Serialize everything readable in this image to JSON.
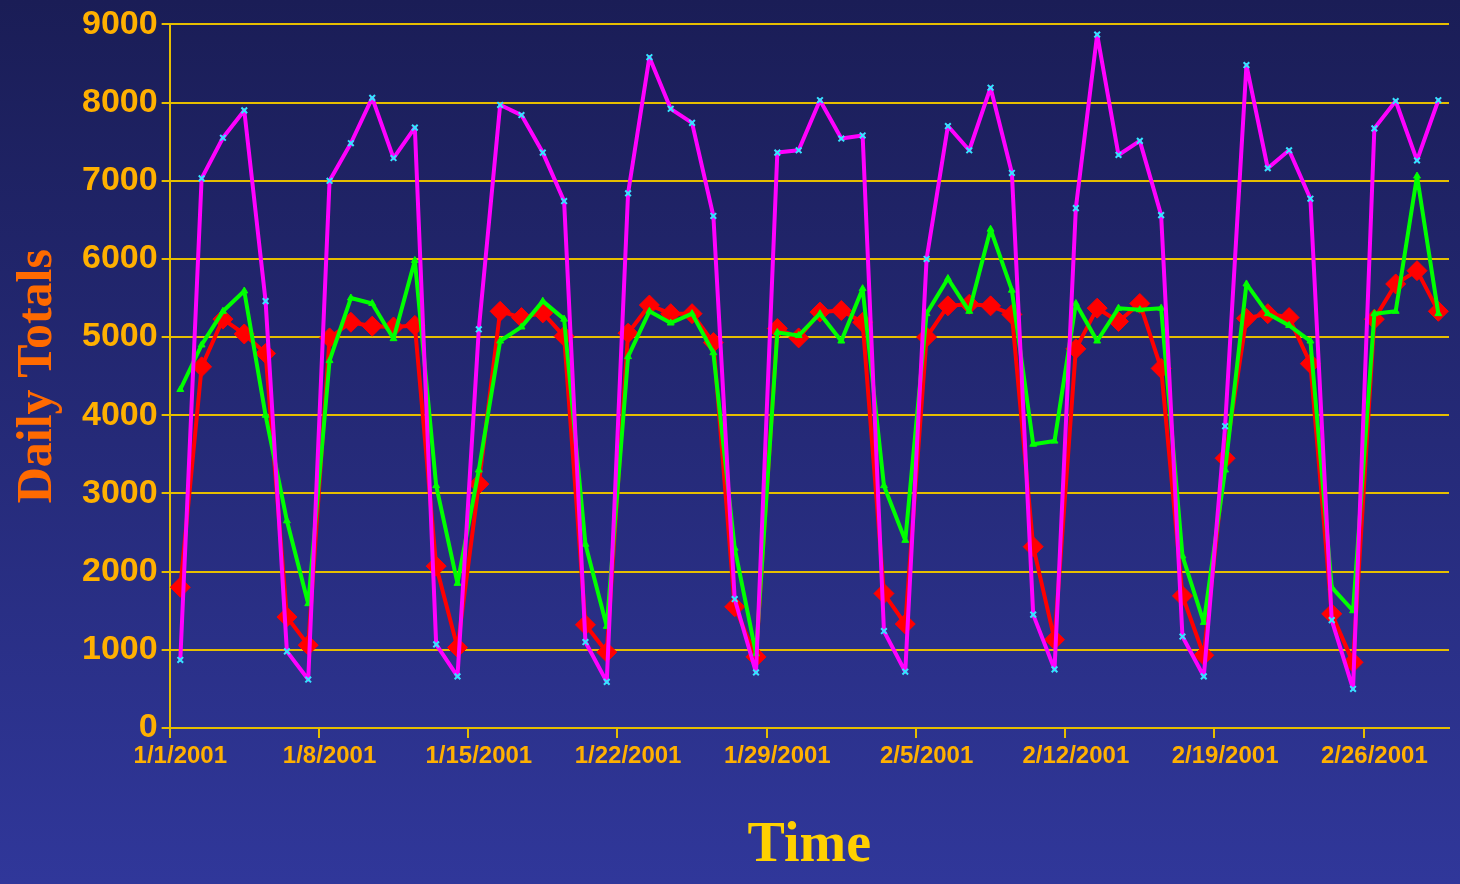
{
  "chart_data": {
    "type": "line",
    "xlabel": "Time",
    "ylabel": "Daily Totals",
    "categories": [
      "1/1/2001",
      null,
      null,
      null,
      null,
      null,
      null,
      "1/8/2001",
      null,
      null,
      null,
      null,
      null,
      null,
      "1/15/2001",
      null,
      null,
      null,
      null,
      null,
      null,
      "1/22/2001",
      null,
      null,
      null,
      null,
      null,
      null,
      "1/29/2001",
      null,
      null,
      null,
      null,
      null,
      null,
      "2/5/2001",
      null,
      null,
      null,
      null,
      null,
      null,
      "2/12/2001",
      null,
      null,
      null,
      null,
      null,
      null,
      "2/19/2001",
      null,
      null,
      null,
      null,
      null,
      null,
      "2/26/2001",
      null,
      null,
      null
    ],
    "series": [
      {
        "color": "#ff00ff",
        "marker": "cross",
        "values": [
          870,
          7030,
          7550,
          7900,
          5460,
          980,
          620,
          7000,
          7480,
          8060,
          7290,
          7680,
          1070,
          660,
          5100,
          7970,
          7840,
          7360,
          6740,
          1100,
          590,
          6840,
          8580,
          7920,
          7740,
          6550,
          1650,
          710,
          7360,
          7390,
          8030,
          7540,
          7580,
          1240,
          720,
          6000,
          7700,
          7390,
          8190,
          7100,
          1450,
          750,
          6650,
          8870,
          7330,
          7510,
          6560,
          1170,
          660,
          3860,
          8480,
          7160,
          7390,
          6770,
          1380,
          500,
          7670,
          8020,
          7260,
          8030
        ]
      },
      {
        "color": "#00ff00",
        "marker": "triangle",
        "values": [
          4330,
          4900,
          5330,
          5590,
          4000,
          2650,
          1590,
          4700,
          5500,
          5430,
          4980,
          5980,
          3100,
          1850,
          3300,
          4950,
          5130,
          5460,
          5230,
          2350,
          1300,
          4750,
          5330,
          5180,
          5300,
          4800,
          2300,
          950,
          5060,
          5020,
          5300,
          4950,
          5620,
          3100,
          2400,
          5300,
          5750,
          5330,
          6380,
          5600,
          3630,
          3670,
          5430,
          4950,
          5370,
          5350,
          5370,
          2200,
          1350,
          3300,
          5680,
          5300,
          5150,
          4950,
          1800,
          1500,
          5300,
          5330,
          7060,
          5300
        ]
      },
      {
        "color": "#ff0000",
        "marker": "diamond",
        "values": [
          1800,
          4620,
          5230,
          5040,
          4790,
          1420,
          1060,
          4990,
          5190,
          5140,
          5130,
          5150,
          2070,
          1030,
          3120,
          5330,
          5250,
          5310,
          5010,
          1320,
          970,
          5050,
          5410,
          5300,
          5300,
          4930,
          1550,
          910,
          5110,
          4990,
          5320,
          5340,
          5190,
          1720,
          1330,
          5000,
          5400,
          5420,
          5400,
          5290,
          2320,
          1130,
          4850,
          5370,
          5200,
          5430,
          4600,
          1690,
          930,
          3450,
          5240,
          5300,
          5250,
          4660,
          1460,
          840,
          5230,
          5680,
          5850,
          5330
        ]
      }
    ],
    "ylim": [
      0,
      9000
    ],
    "yticks": [
      0,
      1000,
      2000,
      3000,
      4000,
      5000,
      6000,
      7000,
      8000,
      9000
    ],
    "grid": "y",
    "legend": false,
    "line_style": "solid"
  }
}
